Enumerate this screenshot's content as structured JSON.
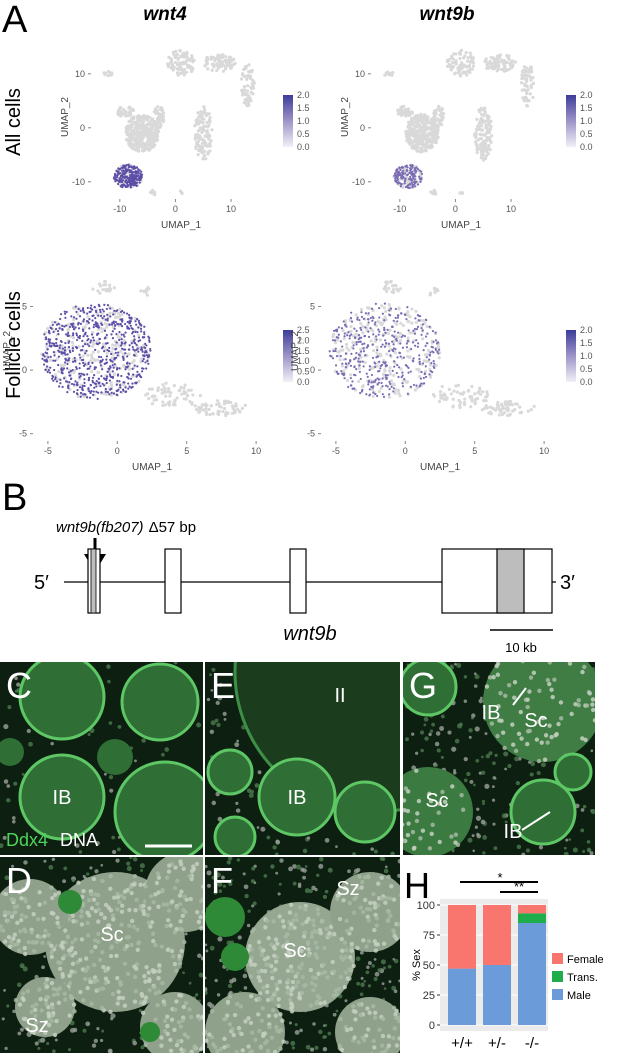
{
  "panel_a": {
    "label": "A",
    "column_titles": [
      "wnt4",
      "wnt9b"
    ],
    "row_titles": [
      "All cells",
      "Follicle cells"
    ],
    "plots": [
      {
        "x_label": "UMAP_1",
        "y_label": "UMAP_2",
        "xlim": [
          -15,
          17
        ],
        "ylim": [
          -13,
          17
        ],
        "xticks": [
          -10,
          0,
          10
        ],
        "yticks": [
          -10,
          0,
          10
        ],
        "colorbar_labels": [
          "2.0",
          "1.5",
          "1.0",
          "0.5",
          "0.0"
        ]
      },
      {
        "x_label": "UMAP_1",
        "y_label": "UMAP_2",
        "xlim": [
          -15,
          17
        ],
        "ylim": [
          -13,
          17
        ],
        "xticks": [
          -10,
          0,
          10
        ],
        "yticks": [
          -10,
          0,
          10
        ],
        "colorbar_labels": [
          "2.0",
          "1.5",
          "1.0",
          "0.5",
          "0.0"
        ]
      },
      {
        "x_label": "UMAP_1",
        "y_label": "UMAP_2",
        "xlim": [
          -6,
          11
        ],
        "ylim": [
          -5.5,
          8.5
        ],
        "xticks": [
          -5,
          0,
          5,
          10
        ],
        "yticks": [
          -5,
          0,
          5
        ],
        "colorbar_labels": [
          "2.5",
          "2.0",
          "1.5",
          "1.0",
          "0.5",
          "0.0"
        ]
      },
      {
        "x_label": "UMAP_1",
        "y_label": "UMAP_2",
        "xlim": [
          -6,
          11
        ],
        "ylim": [
          -5.5,
          8.5
        ],
        "xticks": [
          -5,
          0,
          5,
          10
        ],
        "yticks": [
          -5,
          0,
          5
        ],
        "colorbar_labels": [
          "2.0",
          "1.5",
          "1.0",
          "0.5",
          "0.0"
        ]
      }
    ]
  },
  "panel_b": {
    "label": "B",
    "allele": "wnt9b(fb207)",
    "deletion": "Δ57 bp",
    "five_prime": "5′",
    "three_prime": "3′",
    "gene": "wnt9b",
    "scale_bar": "10 kb"
  },
  "panel_c": {
    "label": "C",
    "annotations": [
      "IB"
    ],
    "stains": [
      "Ddx4",
      "DNA"
    ]
  },
  "panel_d": {
    "label": "D",
    "annotations": [
      "Sc",
      "Sz"
    ]
  },
  "panel_e": {
    "label": "E",
    "annotations": [
      "II",
      "IB"
    ]
  },
  "panel_f": {
    "label": "F",
    "annotations": [
      "Sz",
      "Sc"
    ]
  },
  "panel_g": {
    "label": "G",
    "annotations": [
      "IB",
      "Sc",
      "Sc",
      "IB"
    ]
  },
  "panel_h": {
    "label": "H",
    "type": "bar",
    "stacked": true,
    "categories": [
      "+/+",
      "+/-",
      "-/-"
    ],
    "y_label": "% Sex",
    "ylim": [
      -5,
      105
    ],
    "yticks": [
      0,
      25,
      50,
      75,
      100
    ],
    "significance": [
      "*",
      "**"
    ],
    "series": [
      {
        "name": "Female",
        "color": "#f8766d",
        "values": [
          53,
          50,
          7
        ]
      },
      {
        "name": "Trans.",
        "color": "#1fad4b",
        "values": [
          0,
          0,
          8
        ]
      },
      {
        "name": "Male",
        "color": "#6b9bd8",
        "values": [
          47,
          50,
          85
        ]
      }
    ]
  }
}
